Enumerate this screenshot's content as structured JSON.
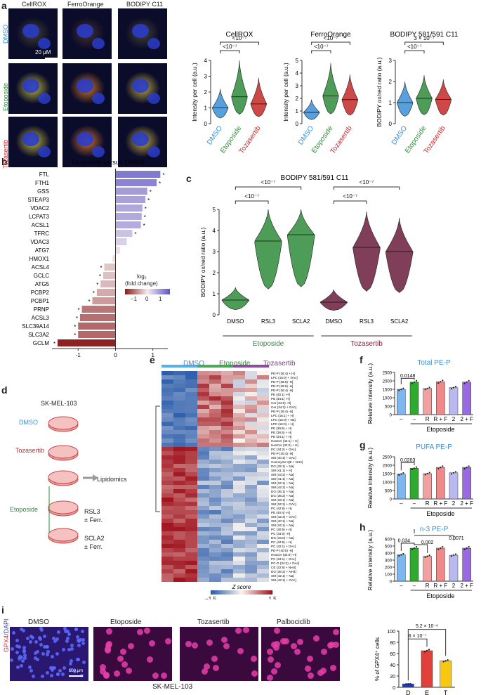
{
  "panels": {
    "a": "a",
    "b": "b",
    "c": "c",
    "d": "d",
    "e": "e",
    "f": "f",
    "g": "g",
    "h": "h",
    "i": "i"
  },
  "colors": {
    "dmso": "#3a8fd6",
    "etoposide": "#2e8b3a",
    "tozasertib": "#c62828",
    "violin_c": "#6b1c3b"
  },
  "panel_a": {
    "col_labels": [
      "CellROX",
      "FerroOrange",
      "BODIPY C11"
    ],
    "row_labels": [
      "DMSO",
      "Etoposide",
      "Tozasertib"
    ],
    "scale_label": "20 μM"
  },
  "panel_b": {
    "heatmap_legend_title": "log₂",
    "heatmap_legend_title2": "(fold change)",
    "heatmap_ticks": [
      "−1",
      "0",
      "1"
    ]
  },
  "panel_d": {
    "cell_line": "SK-MEL-103",
    "dmso": "DMSO",
    "tozasertib": "Tozasertib",
    "etoposide": "Etoposide",
    "lipidomics": "Lipidomics",
    "rsl3": "RSL3",
    "rsl3_sub": "± Ferr.",
    "scla2": "SCLA2",
    "scla2_sub": "± Ferr."
  },
  "panel_e": {
    "groups": [
      "DMSO",
      "Etoposide",
      "Tozasertib"
    ],
    "zscore_title": "Z score",
    "zscore_ticks": [
      "−1.5",
      "1.5"
    ],
    "row_labels": [
      "PE-P (36:4) + H]",
      "LPC (16:0) + OAc]",
      "PE-P (38:5) -H]",
      "PE-P (36:5) -H]",
      "PE-P (36:4) -H]",
      "PE (40:1) -H]",
      "PE (34:1) -H]",
      "Cer (34:2) -H]",
      "Cer (34:2) + OAc]",
      "PE-P (36:4) -H]",
      "LPC (16:1) + H]",
      "LPC (16:0) + Na]",
      "LPC (16:0) + H]",
      "PE (36:5) + H]",
      "PE (36:5) + H]",
      "PE (34:1) + H]",
      "HexCer (42:1) + H]",
      "HexCer (42:2) + H]",
      "PC (34:2) + OAc]",
      "PE-P (40:4) -H]",
      "SM (40:1) + OAc]",
      "Coenzyme Q8 + NH4]",
      "DG (32:1) + Na]",
      "SM (41:1) + H]",
      "SM (43:2) + Na]",
      "SM (41:1) + Na]",
      "SM (34:1) + Na]",
      "SM (42:2) + Na]",
      "DG (36:1) + Na]",
      "DG (36:2) + Na]",
      "SM (33:1) + Na]",
      "SM (34:1) + OAc]",
      "PC (42:8) + H]",
      "PE (40:4) -H]",
      "SM (42:3) + OAc]",
      "SM (40:1) + Na]",
      "SM (34:1) + Na]",
      "PC (40:5) + H]",
      "PC (34:0) -H]",
      "DG (34:0) + Na]",
      "PC (42:6) + H]",
      "PC (32:1) + OAc]",
      "PE-P (40:5) -H]",
      "HexCer (34:0) -H]",
      "PC (34:1) + OAc]",
      "PC-O (34:2) + OAc]",
      "CE (22:6) + NH4]",
      "DG (36:2) + NH4]",
      "SM (42:1) + Na]",
      "SM (42:1) + OAc]"
    ]
  },
  "chart_data": [
    {
      "id": "a-cellrox",
      "type": "violin",
      "title": "CellROX",
      "ylabel": "Intensity per cell (a.u.)",
      "ylim": [
        0,
        4
      ],
      "yticks": [
        0,
        1,
        2,
        3,
        4
      ],
      "categories": [
        "DMSO",
        "Etoposide",
        "Tozasertib"
      ],
      "medians": [
        1.0,
        1.7,
        1.25
      ],
      "maxima": [
        2.2,
        4.0,
        2.9
      ],
      "annotations": [
        {
          "text": "<10⁻⁷",
          "between": [
            "DMSO",
            "Etoposide"
          ]
        },
        {
          "text": "<10⁻⁷",
          "between": [
            "DMSO",
            "Tozasertib"
          ]
        }
      ]
    },
    {
      "id": "a-ferro",
      "type": "violin",
      "title": "FerroOrange",
      "ylabel": "Intensity per cell (a.u.)",
      "ylim": [
        0,
        5
      ],
      "yticks": [
        0,
        1,
        2,
        3,
        4,
        5
      ],
      "categories": [
        "DMSO",
        "Etoposide",
        "Tozasertib"
      ],
      "medians": [
        0.9,
        2.2,
        1.9
      ],
      "maxima": [
        1.9,
        4.8,
        3.9
      ],
      "annotations": [
        {
          "text": "<10⁻⁷",
          "between": [
            "DMSO",
            "Etoposide"
          ]
        },
        {
          "text": "<10⁻⁷",
          "between": [
            "DMSO",
            "Tozasertib"
          ]
        }
      ]
    },
    {
      "id": "a-bodipy",
      "type": "violin",
      "title": "BODIPY 581/591 C11",
      "ylabel": "BODIPY ox/red ratio (a.u.)",
      "ylim": [
        0,
        3
      ],
      "yticks": [
        0,
        1,
        2,
        3
      ],
      "categories": [
        "DMSO",
        "Etoposide",
        "Tozasertib"
      ],
      "medians": [
        1.0,
        1.2,
        1.15
      ],
      "maxima": [
        2.0,
        2.3,
        2.1
      ],
      "annotations": [
        {
          "text": "<10⁻⁷",
          "between": [
            "DMSO",
            "Etoposide"
          ]
        },
        {
          "text": "3 × 10⁻⁷",
          "between": [
            "DMSO",
            "Tozasertib"
          ]
        }
      ]
    },
    {
      "id": "b",
      "type": "bar",
      "orientation": "horizontal",
      "title": "Etoposide versus DMSO",
      "xlabel": "log₂ (fold change)",
      "xlim": [
        -1.7,
        1.4
      ],
      "xticks": [
        -1,
        0,
        1
      ],
      "categories": [
        "FTL",
        "FTH1",
        "GSS",
        "STEAP3",
        "VDAC2",
        "LCPAT3",
        "ACSL1",
        "TFRC",
        "VDAC3",
        "ATG7",
        "HMOX1",
        "ACSL4",
        "GCLC",
        "ATG5",
        "PCBP2",
        "PCBP1",
        "PRNP",
        "ACSL3",
        "SLC39A14",
        "SLC3A2",
        "GCLM"
      ],
      "values": [
        1.2,
        1.1,
        0.85,
        0.8,
        0.72,
        0.7,
        0.68,
        0.45,
        0.3,
        0.12,
        -0.08,
        -0.3,
        -0.33,
        -0.4,
        -0.5,
        -0.62,
        -0.9,
        -0.95,
        -1.0,
        -1.0,
        -1.55
      ],
      "significant": [
        true,
        true,
        true,
        true,
        true,
        true,
        true,
        true,
        false,
        false,
        false,
        true,
        true,
        true,
        true,
        true,
        true,
        true,
        true,
        true,
        true
      ]
    },
    {
      "id": "c",
      "type": "violin",
      "title": "BODIPY 581/591 C11",
      "ylabel": "BODIPY ox/red ratio (a.u.)",
      "ylim": [
        0,
        5
      ],
      "yticks": [
        0,
        1,
        2,
        3,
        4,
        5
      ],
      "categories": [
        "DMSO",
        "RSL3",
        "SCLA2",
        "DMSO",
        "RSL3",
        "SCLA2"
      ],
      "groups": [
        "Etoposide",
        "Tozasertib"
      ],
      "medians": [
        0.7,
        3.5,
        3.8,
        0.6,
        3.2,
        3.0
      ],
      "maxima": [
        1.3,
        5.0,
        5.0,
        1.2,
        4.9,
        4.6
      ],
      "annotations": [
        {
          "text": "<10⁻⁷",
          "level": "upper",
          "group": "Etoposide"
        },
        {
          "text": "<10⁻⁷",
          "level": "lower",
          "group": "Etoposide"
        },
        {
          "text": "<10⁻⁷",
          "level": "upper",
          "group": "Tozasertib"
        },
        {
          "text": "<10⁻⁷",
          "level": "lower",
          "group": "Tozasertib"
        }
      ]
    },
    {
      "id": "f",
      "type": "bar",
      "title": "Total PE-P",
      "ylabel": "Relative intensity (a.u.)",
      "ylim": [
        0,
        2500
      ],
      "yticks": [
        0,
        500,
        1000,
        1500,
        2000,
        2500
      ],
      "categories": [
        "–",
        "–",
        "R",
        "R + F",
        "2",
        "2 + F"
      ],
      "group_label": "Etoposide",
      "values": [
        1500,
        1930,
        1550,
        1950,
        1600,
        1930
      ],
      "annotations": [
        {
          "text": "0.0148"
        }
      ]
    },
    {
      "id": "g",
      "type": "bar",
      "title": "PUFA PE-P",
      "ylabel": "Relative intensity (a.u.)",
      "ylim": [
        0,
        2500
      ],
      "yticks": [
        0,
        500,
        1000,
        1500,
        2000,
        2500
      ],
      "categories": [
        "–",
        "–",
        "R",
        "R + F",
        "2",
        "2 + F"
      ],
      "group_label": "Etoposide",
      "values": [
        1480,
        1820,
        1500,
        1870,
        1550,
        1870
      ],
      "annotations": [
        {
          "text": "0.0203"
        }
      ]
    },
    {
      "id": "h",
      "type": "bar",
      "title": "n-3 PE-P",
      "ylabel": "Relative intensity (a.u.)",
      "ylim": [
        0,
        600
      ],
      "yticks": [
        0,
        100,
        200,
        300,
        400,
        500,
        600
      ],
      "categories": [
        "–",
        "–",
        "R",
        "R + F",
        "2",
        "2 + F"
      ],
      "group_label": "Etoposide",
      "values": [
        375,
        470,
        355,
        470,
        370,
        470
      ],
      "annotations": [
        {
          "text": "0.034"
        },
        {
          "text": "0.002"
        },
        {
          "text": "0.0071"
        }
      ]
    },
    {
      "id": "i",
      "type": "bar",
      "ylabel": "% of GPX4⁺ cells",
      "ylim": [
        0,
        100
      ],
      "yticks": [
        0,
        20,
        40,
        60,
        80,
        100
      ],
      "categories": [
        "D",
        "E",
        "T"
      ],
      "values": [
        6,
        65,
        47
      ],
      "annotations": [
        {
          "text": "6 × 10⁻⁷"
        },
        {
          "text": "5.2 × 10⁻⁶"
        }
      ]
    }
  ],
  "panel_i": {
    "images": [
      "DMSO",
      "Etoposide",
      "Tozasertib",
      "Palbociclib"
    ],
    "channel_gpx4": "GPX4",
    "channel_dapi": "/DAPI",
    "scale_label": "100 μm",
    "cell_line": "SK-MEL-103"
  }
}
